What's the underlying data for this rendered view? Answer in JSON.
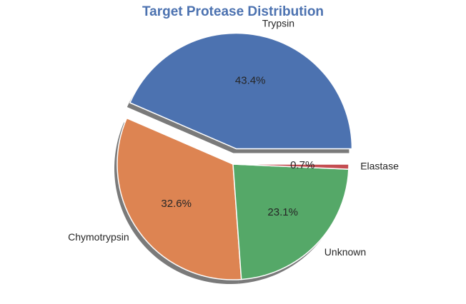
{
  "chart_data": {
    "type": "pie",
    "title": "Target Protease Distribution",
    "title_color": "#4C72B0",
    "slices": [
      {
        "label": "Trypsin",
        "percent": 43.4,
        "percent_label": "43.4%",
        "color": "#4C72B0",
        "exploded": true
      },
      {
        "label": "Chymotrypsin",
        "percent": 32.6,
        "percent_label": "32.6%",
        "color": "#DD8452",
        "exploded": false
      },
      {
        "label": "Unknown",
        "percent": 23.1,
        "percent_label": "23.1%",
        "color": "#55A868",
        "exploded": false
      },
      {
        "label": "Elastase",
        "percent": 0.7,
        "percent_label": "0.7%",
        "color": "#C44E52",
        "exploded": false
      }
    ],
    "start_angle_deg": 0,
    "direction": "counterclockwise",
    "shadow": true,
    "legend": "none"
  }
}
